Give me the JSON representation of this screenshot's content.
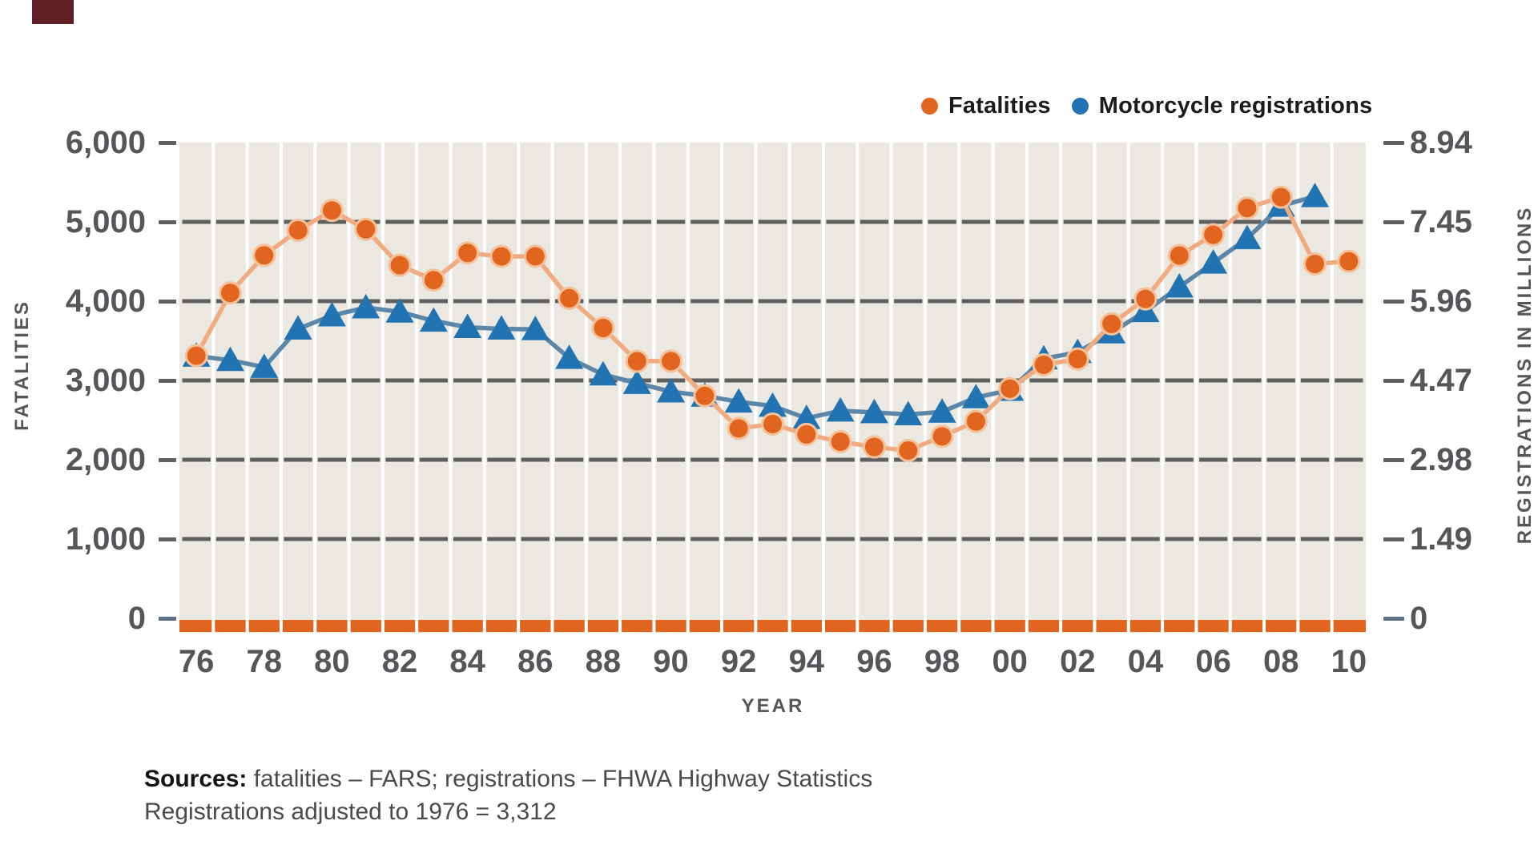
{
  "page": {
    "corner_accent_color": "#5E1F26",
    "background": "#ffffff"
  },
  "legend": {
    "items": [
      {
        "label": "Fatalities",
        "marker": "circle",
        "color": "#E2651F"
      },
      {
        "label": "Motorcycle registrations",
        "marker": "circle",
        "color": "#2173B2"
      }
    ]
  },
  "left_axis": {
    "title": "FATALITIES",
    "ticks": [
      "6,000",
      "5,000",
      "4,000",
      "3,000",
      "2,000",
      "1,000",
      "0"
    ]
  },
  "right_axis": {
    "title": "REGISTRATIONS IN MILLIONS",
    "ticks": [
      "8.94",
      "7.45",
      "5.96",
      "4.47",
      "2.98",
      "1.49",
      "0"
    ]
  },
  "x_axis": {
    "title": "YEAR",
    "tick_labels": [
      "76",
      "78",
      "80",
      "82",
      "84",
      "86",
      "88",
      "90",
      "92",
      "94",
      "96",
      "98",
      "00",
      "02",
      "04",
      "06",
      "08",
      "10"
    ]
  },
  "source": {
    "line1_label": "Sources:",
    "line1_text": " fatalities – FARS; registrations – FHWA  Highway Statistics",
    "line2_text": "Registrations adjusted to 1976 = 3,312"
  },
  "chart_data": {
    "type": "line",
    "title": "",
    "x": [
      1976,
      1977,
      1978,
      1979,
      1980,
      1981,
      1982,
      1983,
      1984,
      1985,
      1986,
      1987,
      1988,
      1989,
      1990,
      1991,
      1992,
      1993,
      1994,
      1995,
      1996,
      1997,
      1998,
      1999,
      2000,
      2001,
      2002,
      2003,
      2004,
      2005,
      2006,
      2007,
      2008,
      2009,
      2010
    ],
    "series": [
      {
        "name": "Fatalities",
        "axis": "left",
        "marker": "circle",
        "marker_color": "#E2651F",
        "marker_halo": "#F4C29A",
        "line_color": "#F0AC80",
        "values": [
          3312,
          4104,
          4577,
          4894,
          5144,
          4906,
          4453,
          4265,
          4608,
          4564,
          4566,
          4036,
          3662,
          3243,
          3244,
          2806,
          2395,
          2449,
          2320,
          2227,
          2161,
          2116,
          2294,
          2483,
          2897,
          3197,
          3270,
          3714,
          4028,
          4576,
          4837,
          5174,
          5312,
          4469,
          4502
        ]
      },
      {
        "name": "Motorcycle registrations",
        "axis": "right",
        "marker": "triangle",
        "marker_color": "#2173B2",
        "line_color": "#5C87A9",
        "values": [
          4.93,
          4.85,
          4.72,
          5.44,
          5.69,
          5.84,
          5.76,
          5.59,
          5.47,
          5.44,
          5.43,
          4.89,
          4.58,
          4.42,
          4.26,
          4.18,
          4.07,
          3.99,
          3.76,
          3.9,
          3.87,
          3.83,
          3.88,
          4.15,
          4.29,
          4.88,
          5.0,
          5.37,
          5.77,
          6.23,
          6.68,
          7.14,
          7.75,
          7.93,
          null
        ]
      }
    ],
    "left_ylim": [
      0,
      6000
    ],
    "right_ylim": [
      0,
      8.94
    ],
    "left_gridline_values": [
      1000,
      2000,
      3000,
      4000,
      5000
    ],
    "grid_on": true,
    "legend_position": "top-right",
    "plot_bg": "#EAE8E0",
    "column_separator_color": "#FFFFFF",
    "gridline_color": "#5F5F60",
    "zero_bar_color": "#E2651F",
    "zero_tick_color": "#5B7183",
    "tick_color": "#5F5F60"
  }
}
